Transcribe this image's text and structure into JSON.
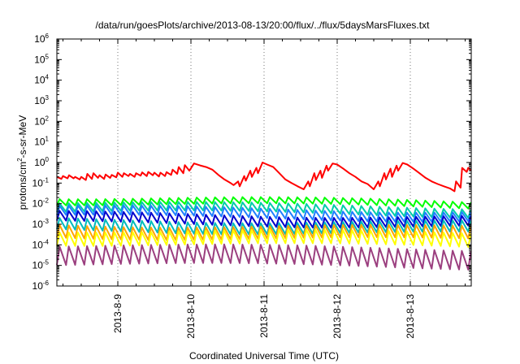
{
  "chart_data": {
    "type": "line",
    "title": "/data/run/goesPlots/archive/2013-08-13/20:00/flux/../flux/5daysMarsFluxes.txt",
    "xlabel": "Coordinated Universal Time (UTC)",
    "ylabel": {
      "base": "protons/cm",
      "sup": "2",
      "rest": "-s-sr-MeV"
    },
    "y_scale": "log",
    "ylim": [
      1e-06,
      1000000.0
    ],
    "xlim": [
      "2013-08-08T04:00",
      "2013-08-13T20:00"
    ],
    "grid": "x-dotted",
    "legend": "none",
    "y_ticks": [
      {
        "value": 1e-06,
        "base": "10",
        "exp": "-6"
      },
      {
        "value": 1e-05,
        "base": "10",
        "exp": "-5"
      },
      {
        "value": 0.0001,
        "base": "10",
        "exp": "-4"
      },
      {
        "value": 0.001,
        "base": "10",
        "exp": "-3"
      },
      {
        "value": 0.01,
        "base": "10",
        "exp": "-2"
      },
      {
        "value": 0.1,
        "base": "10",
        "exp": "-1"
      },
      {
        "value": 1,
        "base": "10",
        "exp": "0"
      },
      {
        "value": 10,
        "base": "10",
        "exp": "1"
      },
      {
        "value": 100,
        "base": "10",
        "exp": "2"
      },
      {
        "value": 1000,
        "base": "10",
        "exp": "3"
      },
      {
        "value": 10000,
        "base": "10",
        "exp": "4"
      },
      {
        "value": 100000,
        "base": "10",
        "exp": "5"
      },
      {
        "value": 1000000,
        "base": "10",
        "exp": "6"
      }
    ],
    "x_ticks": [
      {
        "value": "2013-08-09T00:00",
        "label": "2013-8-9"
      },
      {
        "value": "2013-08-10T00:00",
        "label": "2013-8-10"
      },
      {
        "value": "2013-08-11T00:00",
        "label": "2013-8-11"
      },
      {
        "value": "2013-08-12T00:00",
        "label": "2013-8-12"
      },
      {
        "value": "2013-08-13T00:00",
        "label": "2013-8-13"
      }
    ],
    "series": [
      {
        "color": "#ff0000",
        "x": [
          "2013-08-08T04:00",
          "2013-08-08T05:30",
          "2013-08-08T06:00",
          "2013-08-08T07:30",
          "2013-08-08T08:00",
          "2013-08-08T09:30",
          "2013-08-08T10:00",
          "2013-08-08T11:30",
          "2013-08-08T12:00",
          "2013-08-08T13:30",
          "2013-08-08T14:00",
          "2013-08-08T15:30",
          "2013-08-08T16:00",
          "2013-08-08T17:30",
          "2013-08-08T18:00",
          "2013-08-08T19:30",
          "2013-08-08T20:00",
          "2013-08-08T21:30",
          "2013-08-08T22:00",
          "2013-08-08T23:30",
          "2013-08-09T00:00",
          "2013-08-09T01:30",
          "2013-08-09T02:00",
          "2013-08-09T03:30",
          "2013-08-09T04:00",
          "2013-08-09T05:30",
          "2013-08-09T06:00",
          "2013-08-09T07:30",
          "2013-08-09T08:00",
          "2013-08-09T09:30",
          "2013-08-09T10:00",
          "2013-08-09T11:30",
          "2013-08-09T12:00",
          "2013-08-09T13:30",
          "2013-08-09T14:00",
          "2013-08-09T15:30",
          "2013-08-09T16:00",
          "2013-08-09T17:30",
          "2013-08-09T18:00",
          "2013-08-09T19:30",
          "2013-08-09T20:00",
          "2013-08-09T21:30",
          "2013-08-09T22:00",
          "2013-08-09T23:30",
          "2013-08-10T01:00",
          "2013-08-10T03:00",
          "2013-08-10T05:00",
          "2013-08-10T07:00",
          "2013-08-10T09:00",
          "2013-08-10T11:00",
          "2013-08-10T13:00",
          "2013-08-10T14:00",
          "2013-08-10T15:30",
          "2013-08-10T16:00",
          "2013-08-10T17:30",
          "2013-08-10T18:00",
          "2013-08-10T19:30",
          "2013-08-10T20:00",
          "2013-08-10T21:30",
          "2013-08-10T22:00",
          "2013-08-10T23:30",
          "2013-08-11T01:00",
          "2013-08-11T03:00",
          "2013-08-11T05:00",
          "2013-08-11T07:00",
          "2013-08-11T09:00",
          "2013-08-11T11:00",
          "2013-08-11T13:00",
          "2013-08-11T14:30",
          "2013-08-11T15:00",
          "2013-08-11T16:30",
          "2013-08-11T17:00",
          "2013-08-11T18:30",
          "2013-08-11T19:00",
          "2013-08-11T20:30",
          "2013-08-11T21:00",
          "2013-08-11T22:30",
          "2013-08-12T00:00",
          "2013-08-12T02:00",
          "2013-08-12T04:00",
          "2013-08-12T06:00",
          "2013-08-12T08:00",
          "2013-08-12T10:00",
          "2013-08-12T12:00",
          "2013-08-12T13:30",
          "2013-08-12T14:00",
          "2013-08-12T15:30",
          "2013-08-12T16:00",
          "2013-08-12T17:30",
          "2013-08-12T18:00",
          "2013-08-12T19:30",
          "2013-08-12T20:00",
          "2013-08-12T21:30",
          "2013-08-12T23:00",
          "2013-08-13T01:00",
          "2013-08-13T03:00",
          "2013-08-13T05:00",
          "2013-08-13T07:00",
          "2013-08-13T09:00",
          "2013-08-13T11:00",
          "2013-08-13T13:00",
          "2013-08-13T14:30",
          "2013-08-13T15:00",
          "2013-08-13T16:30",
          "2013-08-13T17:00",
          "2013-08-13T18:30",
          "2013-08-13T19:00",
          "2013-08-13T20:00"
        ],
        "y": [
          0.2,
          0.16,
          0.22,
          0.17,
          0.24,
          0.17,
          0.2,
          0.15,
          0.2,
          0.14,
          0.28,
          0.16,
          0.3,
          0.18,
          0.24,
          0.16,
          0.26,
          0.18,
          0.25,
          0.19,
          0.32,
          0.2,
          0.3,
          0.22,
          0.28,
          0.2,
          0.3,
          0.23,
          0.33,
          0.22,
          0.35,
          0.24,
          0.32,
          0.21,
          0.32,
          0.22,
          0.34,
          0.25,
          0.45,
          0.28,
          0.6,
          0.3,
          0.75,
          0.4,
          0.9,
          0.72,
          0.6,
          0.45,
          0.25,
          0.15,
          0.1,
          0.08,
          0.12,
          0.07,
          0.22,
          0.13,
          0.4,
          0.2,
          0.55,
          0.3,
          1.0,
          0.8,
          0.6,
          0.3,
          0.15,
          0.1,
          0.07,
          0.05,
          0.12,
          0.07,
          0.3,
          0.14,
          0.4,
          0.18,
          0.7,
          0.4,
          0.9,
          0.8,
          0.5,
          0.3,
          0.2,
          0.12,
          0.09,
          0.05,
          0.12,
          0.07,
          0.3,
          0.15,
          0.5,
          0.2,
          0.7,
          0.4,
          0.95,
          0.8,
          0.5,
          0.3,
          0.18,
          0.12,
          0.09,
          0.07,
          0.055,
          0.04,
          0.12,
          0.06,
          0.55,
          0.35,
          0.55,
          0.4
        ]
      },
      {
        "color": "#00ff00",
        "base": 0.011,
        "peak": 2.0,
        "trend": 0.6,
        "period_h": 3
      },
      {
        "color": "#00ccaa",
        "base": 0.0045,
        "peak": 2.6,
        "trend": 0.6,
        "period_h": 3
      },
      {
        "color": "#1f7fff",
        "base": 0.0025,
        "peak": 2.8,
        "trend": 0.65,
        "period_h": 3
      },
      {
        "color": "#0000cc",
        "base": 0.0012,
        "peak": 3.0,
        "trend": 0.65,
        "period_h": 3
      },
      {
        "color": "#00bbbb",
        "base": 0.0005,
        "peak": 3.5,
        "trend": 0.7,
        "period_h": 3
      },
      {
        "color": "#ffa500",
        "base": 0.00025,
        "peak": 4.0,
        "trend": 0.7,
        "period_h": 3
      },
      {
        "color": "#ffff00",
        "base": 0.00012,
        "peak": 4.5,
        "trend": 0.7,
        "period_h": 3
      },
      {
        "color": "#9b3f7f",
        "base": 1.25e-05,
        "peak": 8.0,
        "trend": 0.65,
        "period_h": 3
      }
    ]
  }
}
